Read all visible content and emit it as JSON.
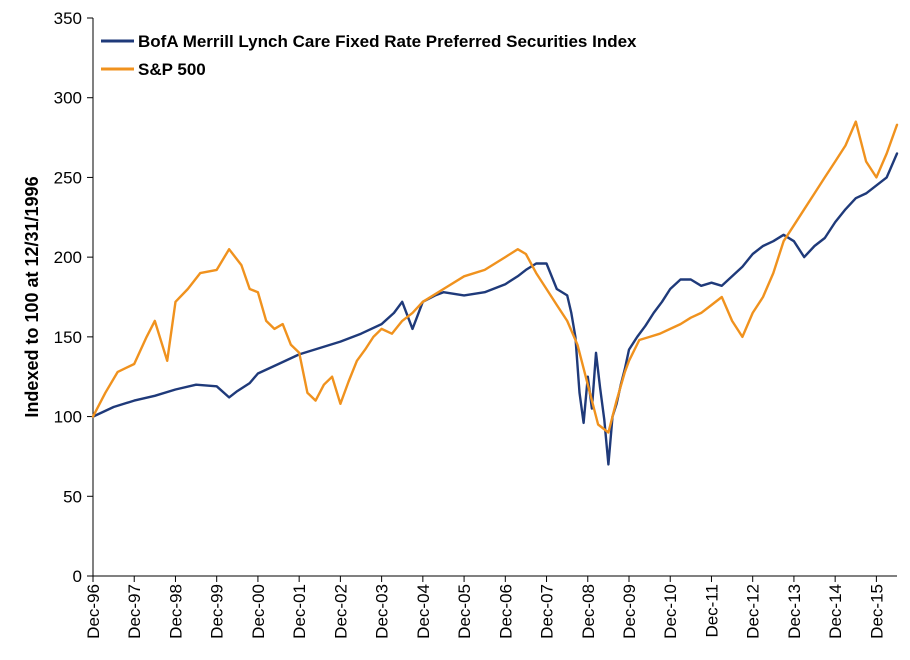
{
  "chart_data": {
    "type": "line",
    "title": "",
    "xlabel": "",
    "ylabel": "Indexed to 100 at 12/31/1996",
    "ylim": [
      0,
      350
    ],
    "yticks": [
      0,
      50,
      100,
      150,
      200,
      250,
      300,
      350
    ],
    "xlim": [
      1996.0,
      2015.5
    ],
    "xtick_labels": [
      "Dec-96",
      "Dec-97",
      "Dec-98",
      "Dec-99",
      "Dec-00",
      "Dec-01",
      "Dec-02",
      "Dec-03",
      "Dec-04",
      "Dec-05",
      "Dec-06",
      "Dec-07",
      "Dec-08",
      "Dec-09",
      "Dec-10",
      "Dec-11",
      "Dec-12",
      "Dec-13",
      "Dec-14",
      "Dec-15"
    ],
    "grid": false,
    "legend_position": "top-left",
    "series": [
      {
        "name": "BofA Merrill Lynch Care Fixed Rate Preferred Securities Index",
        "color": "#1f3a7a",
        "x": [
          1996.0,
          1996.5,
          1997.0,
          1997.5,
          1998.0,
          1998.5,
          1999.0,
          1999.3,
          1999.5,
          1999.8,
          2000.0,
          2000.5,
          2001.0,
          2001.5,
          2002.0,
          2002.5,
          2003.0,
          2003.3,
          2003.5,
          2003.75,
          2004.0,
          2004.3,
          2004.5,
          2005.0,
          2005.5,
          2006.0,
          2006.3,
          2006.5,
          2006.75,
          2007.0,
          2007.25,
          2007.5,
          2007.6,
          2007.7,
          2007.8,
          2007.9,
          2008.0,
          2008.1,
          2008.2,
          2008.3,
          2008.4,
          2008.5,
          2008.6,
          2008.7,
          2008.8,
          2008.9,
          2009.0,
          2009.2,
          2009.4,
          2009.6,
          2009.8,
          2010.0,
          2010.25,
          2010.5,
          2010.75,
          2011.0,
          2011.25,
          2011.5,
          2011.75,
          2012.0,
          2012.25,
          2012.5,
          2012.75,
          2013.0,
          2013.25,
          2013.5,
          2013.75,
          2014.0,
          2014.25,
          2014.5,
          2014.75,
          2015.0,
          2015.25,
          2015.5
        ],
        "y": [
          100,
          106,
          110,
          113,
          117,
          120,
          119,
          112,
          116,
          121,
          127,
          133,
          139,
          143,
          147,
          152,
          158,
          165,
          172,
          155,
          172,
          176,
          178,
          176,
          178,
          183,
          188,
          192,
          196,
          196,
          180,
          176,
          165,
          150,
          115,
          96,
          125,
          105,
          140,
          118,
          98,
          70,
          100,
          108,
          120,
          130,
          142,
          150,
          157,
          165,
          172,
          180,
          186,
          186,
          182,
          184,
          182,
          188,
          194,
          202,
          207,
          210,
          214,
          210,
          200,
          207,
          212,
          222,
          230,
          237,
          240,
          245,
          250,
          265
        ]
      },
      {
        "name": "S&P 500",
        "color": "#f0921e",
        "x": [
          1996.0,
          1996.3,
          1996.6,
          1997.0,
          1997.3,
          1997.5,
          1997.8,
          1998.0,
          1998.3,
          1998.6,
          1999.0,
          1999.3,
          1999.6,
          1999.8,
          2000.0,
          2000.2,
          2000.4,
          2000.6,
          2000.8,
          2001.0,
          2001.2,
          2001.4,
          2001.6,
          2001.8,
          2002.0,
          2002.2,
          2002.4,
          2002.6,
          2002.8,
          2003.0,
          2003.25,
          2003.5,
          2003.75,
          2004.0,
          2004.5,
          2005.0,
          2005.5,
          2006.0,
          2006.3,
          2006.5,
          2006.75,
          2007.0,
          2007.25,
          2007.5,
          2007.75,
          2008.0,
          2008.25,
          2008.5,
          2008.7,
          2008.9,
          2009.0,
          2009.25,
          2009.5,
          2009.75,
          2010.0,
          2010.25,
          2010.5,
          2010.75,
          2011.0,
          2011.25,
          2011.5,
          2011.75,
          2012.0,
          2012.25,
          2012.5,
          2012.75,
          2013.0,
          2013.25,
          2013.5,
          2013.75,
          2014.0,
          2014.25,
          2014.5,
          2014.75,
          2015.0,
          2015.25,
          2015.5
        ],
        "y": [
          100,
          115,
          128,
          133,
          150,
          160,
          135,
          172,
          180,
          190,
          192,
          205,
          195,
          180,
          178,
          160,
          155,
          158,
          145,
          140,
          115,
          110,
          120,
          125,
          108,
          122,
          135,
          142,
          150,
          155,
          152,
          160,
          165,
          172,
          180,
          188,
          192,
          200,
          205,
          202,
          190,
          180,
          170,
          160,
          145,
          120,
          95,
          90,
          110,
          128,
          135,
          148,
          150,
          152,
          155,
          158,
          162,
          165,
          170,
          175,
          160,
          150,
          165,
          175,
          190,
          210,
          220,
          230,
          240,
          250,
          260,
          270,
          285,
          260,
          250,
          265,
          283
        ]
      }
    ]
  }
}
